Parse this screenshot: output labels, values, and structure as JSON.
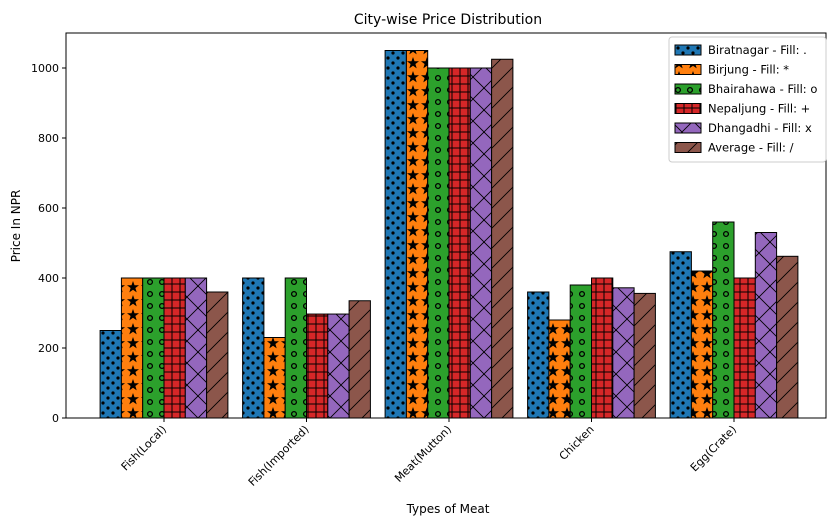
{
  "chart_data": {
    "type": "bar",
    "title": "City-wise Price Distribution",
    "xlabel": "Types of Meat",
    "ylabel": "Price In NPR",
    "ylim": [
      0,
      1100
    ],
    "yticks": [
      0,
      200,
      400,
      600,
      800,
      1000
    ],
    "grid": false,
    "legend_position": "top-right",
    "categories": [
      "Fish(Local)",
      "Fish(Imported)",
      "Meat(Mutton)",
      "Chicken",
      "Egg(Crate)"
    ],
    "series": [
      {
        "name": "Biratnagar - Fill: .",
        "color": "#1f77b4",
        "hatch": "dots",
        "values": [
          250,
          400,
          1050,
          360,
          475
        ]
      },
      {
        "name": "Birjung - Fill: *",
        "color": "#ff7f0e",
        "hatch": "stars",
        "values": [
          400,
          230,
          1050,
          280,
          420
        ]
      },
      {
        "name": "Bhairahawa - Fill: o",
        "color": "#2ca02c",
        "hatch": "circles",
        "values": [
          400,
          400,
          1000,
          380,
          560
        ]
      },
      {
        "name": "Nepaljung - Fill: +",
        "color": "#d62728",
        "hatch": "plus",
        "values": [
          400,
          297,
          1000,
          400,
          400
        ]
      },
      {
        "name": "Dhangadhi - Fill: x",
        "color": "#9467bd",
        "hatch": "cross",
        "values": [
          400,
          297,
          1000,
          372,
          530
        ]
      },
      {
        "name": "Average - Fill: /",
        "color": "#8c564b",
        "hatch": "slash",
        "values": [
          360,
          335,
          1025,
          356,
          462
        ]
      }
    ]
  }
}
